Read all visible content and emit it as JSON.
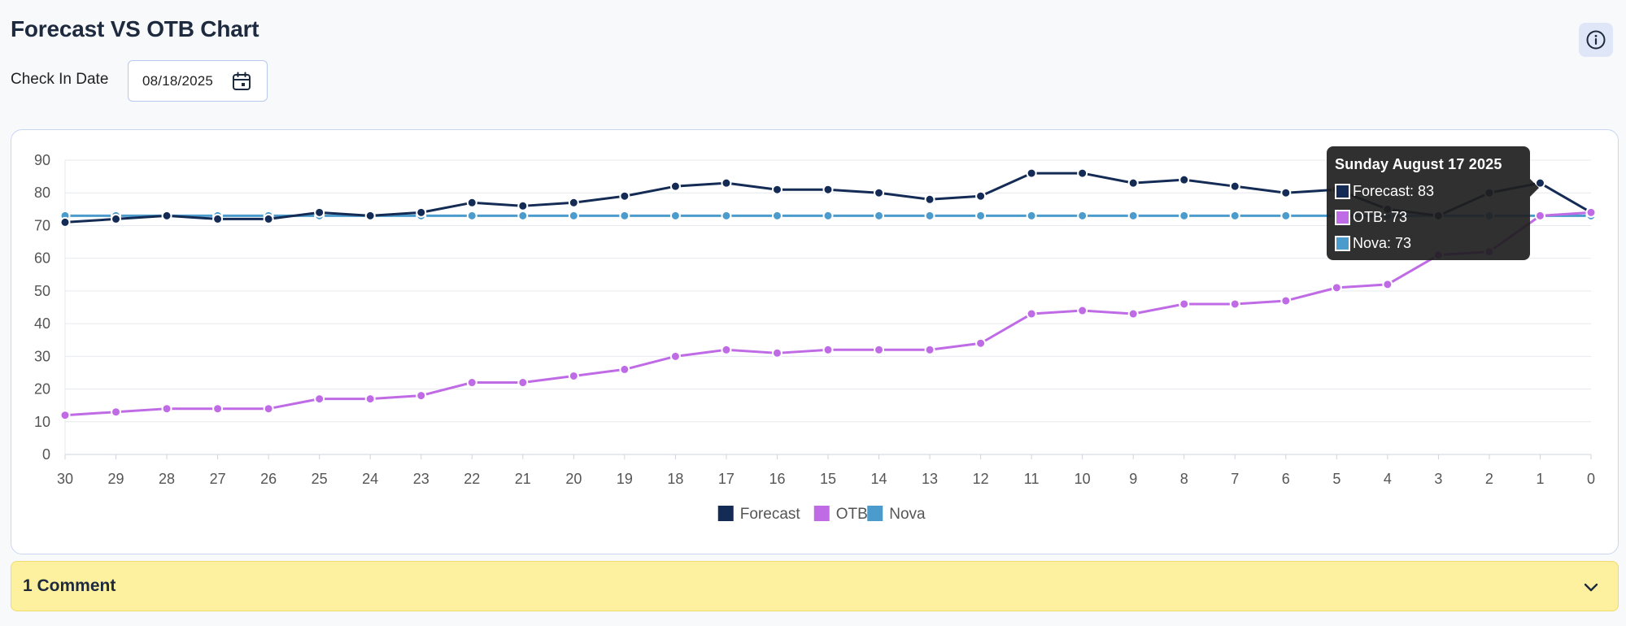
{
  "header": {
    "title": "Forecast VS OTB Chart",
    "info_icon": "info-circle-icon"
  },
  "filter": {
    "date_label": "Check In Date",
    "date_value": "08/18/2025",
    "calendar_icon": "calendar-icon"
  },
  "tooltip": {
    "title": "Sunday August 17 2025",
    "rows": [
      {
        "text": "Forecast: 83",
        "color": "#142c55"
      },
      {
        "text": "OTB: 73",
        "color": "#c06be6"
      },
      {
        "text": "Nova: 73",
        "color": "#4b9ccc"
      }
    ]
  },
  "comments": {
    "label": "1 Comment",
    "chevron_icon": "chevron-down-icon"
  },
  "chart_data": {
    "type": "line",
    "x": [
      30,
      29,
      28,
      27,
      26,
      25,
      24,
      23,
      22,
      21,
      20,
      19,
      18,
      17,
      16,
      15,
      14,
      13,
      12,
      11,
      10,
      9,
      8,
      7,
      6,
      5,
      4,
      3,
      2,
      1,
      0
    ],
    "ylim": [
      0,
      90
    ],
    "yticks": [
      0,
      10,
      20,
      30,
      40,
      50,
      60,
      70,
      80,
      90
    ],
    "grid": true,
    "legend_position": "bottom-center",
    "series": [
      {
        "name": "Forecast",
        "color": "#142c55",
        "values": [
          71,
          72,
          73,
          72,
          72,
          74,
          73,
          74,
          77,
          76,
          77,
          79,
          82,
          83,
          81,
          81,
          80,
          78,
          79,
          86,
          86,
          83,
          84,
          82,
          80,
          81,
          75,
          73,
          80,
          83,
          74
        ]
      },
      {
        "name": "OTB",
        "color": "#c06be6",
        "values": [
          12,
          13,
          14,
          14,
          14,
          17,
          17,
          18,
          22,
          22,
          24,
          26,
          30,
          32,
          31,
          32,
          32,
          32,
          34,
          43,
          44,
          43,
          46,
          46,
          47,
          51,
          52,
          61,
          62,
          73,
          74
        ]
      },
      {
        "name": "Nova",
        "color": "#4b9ccc",
        "values": [
          73,
          73,
          73,
          73,
          73,
          73,
          73,
          73,
          73,
          73,
          73,
          73,
          73,
          73,
          73,
          73,
          73,
          73,
          73,
          73,
          73,
          73,
          73,
          73,
          73,
          73,
          73,
          73,
          73,
          73,
          73
        ]
      }
    ]
  }
}
